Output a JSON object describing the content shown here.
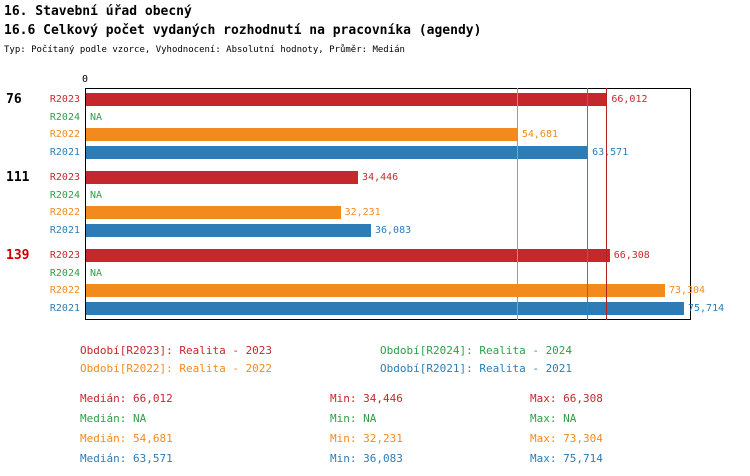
{
  "header": {
    "title1": "16. Stavební úřad obecný",
    "title2": "16.6 Celkový počet vydaných rozhodnutí na pracovníka (agendy)",
    "meta": "Typ: Počítaný podle vzorce, Vyhodnocení: Absolutní hodnoty, Průměr: Medián"
  },
  "chart_data": {
    "type": "bar",
    "orientation": "horizontal",
    "title": "16.6 Celkový počet vydaných rozhodnutí na pracovníka (agendy)",
    "xlabel": "",
    "ylabel": "",
    "xmin": 0,
    "xmax": 76600,
    "axis_zero_label": "0",
    "grid": false,
    "series_order": [
      "R2023",
      "R2024",
      "R2022",
      "R2021"
    ],
    "series_colors": {
      "R2023": "#c5282c",
      "R2024": "#2f9e48",
      "R2022": "#f28a1e",
      "R2021": "#2e7cb5"
    },
    "groups": [
      {
        "label": "76",
        "label_color": "#000000",
        "bars": [
          {
            "series": "R2023",
            "value": 66012,
            "display": "66,012"
          },
          {
            "series": "R2024",
            "value": null,
            "display": "NA"
          },
          {
            "series": "R2022",
            "value": 54681,
            "display": "54,681"
          },
          {
            "series": "R2021",
            "value": 63571,
            "display": "63,571"
          }
        ]
      },
      {
        "label": "111",
        "label_color": "#000000",
        "bars": [
          {
            "series": "R2023",
            "value": 34446,
            "display": "34,446"
          },
          {
            "series": "R2024",
            "value": null,
            "display": "NA"
          },
          {
            "series": "R2022",
            "value": 32231,
            "display": "32,231"
          },
          {
            "series": "R2021",
            "value": 36083,
            "display": "36,083"
          }
        ]
      },
      {
        "label": "139",
        "label_color": "#cc0000",
        "bars": [
          {
            "series": "R2023",
            "value": 66308,
            "display": "66,308"
          },
          {
            "series": "R2024",
            "value": null,
            "display": "NA"
          },
          {
            "series": "R2022",
            "value": 73304,
            "display": "73,304"
          },
          {
            "series": "R2021",
            "value": 75714,
            "display": "75,714"
          }
        ]
      }
    ],
    "median_lines": [
      {
        "series": "R2022",
        "value": 54681,
        "color": "#f28a1e"
      },
      {
        "series": "R2021",
        "value": 63571,
        "color": "#2d8a9e"
      },
      {
        "series": "R2023",
        "value": 66012,
        "color": "#b22222"
      }
    ]
  },
  "legend": [
    {
      "series": "R2023",
      "text": "Období[R2023]: Realita - 2023"
    },
    {
      "series": "R2024",
      "text": "Období[R2024]: Realita - 2024"
    },
    {
      "series": "R2022",
      "text": "Období[R2022]: Realita - 2022"
    },
    {
      "series": "R2021",
      "text": "Období[R2021]: Realita - 2021"
    }
  ],
  "stats": [
    {
      "series": "R2023",
      "median": "Medián: 66,012",
      "min": "Min: 34,446",
      "max": "Max: 66,308"
    },
    {
      "series": "R2024",
      "median": "Medián: NA",
      "min": "Min: NA",
      "max": "Max: NA"
    },
    {
      "series": "R2022",
      "median": "Medián: 54,681",
      "min": "Min: 32,231",
      "max": "Max: 73,304"
    },
    {
      "series": "R2021",
      "median": "Medián: 63,571",
      "min": "Min: 36,083",
      "max": "Max: 75,714"
    }
  ]
}
